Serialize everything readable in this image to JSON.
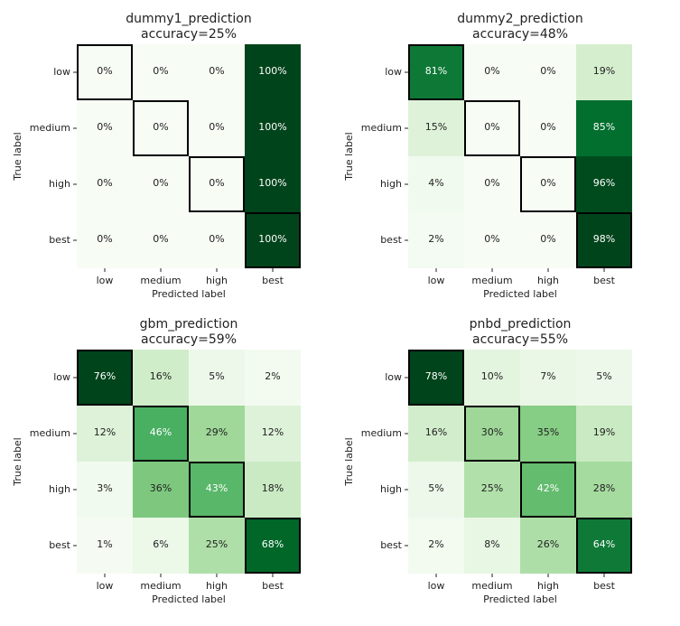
{
  "chart_data": [
    {
      "type": "heatmap",
      "title": "dummy1_prediction",
      "subtitle": "accuracy=25%",
      "xlabel": "Predicted label",
      "ylabel": "True label",
      "x_categories": [
        "low",
        "medium",
        "high",
        "best"
      ],
      "y_categories": [
        "low",
        "medium",
        "high",
        "best"
      ],
      "values": [
        [
          0,
          0,
          0,
          100
        ],
        [
          0,
          0,
          0,
          100
        ],
        [
          0,
          0,
          0,
          100
        ],
        [
          0,
          0,
          0,
          100
        ]
      ],
      "value_suffix": "%",
      "colormap": "greens"
    },
    {
      "type": "heatmap",
      "title": "dummy2_prediction",
      "subtitle": "accuracy=48%",
      "xlabel": "Predicted label",
      "ylabel": "True label",
      "x_categories": [
        "low",
        "medium",
        "high",
        "best"
      ],
      "y_categories": [
        "low",
        "medium",
        "high",
        "best"
      ],
      "values": [
        [
          81,
          0,
          0,
          19
        ],
        [
          15,
          0,
          0,
          85
        ],
        [
          4,
          0,
          0,
          96
        ],
        [
          2,
          0,
          0,
          98
        ]
      ],
      "value_suffix": "%",
      "colormap": "greens"
    },
    {
      "type": "heatmap",
      "title": "gbm_prediction",
      "subtitle": "accuracy=59%",
      "xlabel": "Predicted label",
      "ylabel": "True label",
      "x_categories": [
        "low",
        "medium",
        "high",
        "best"
      ],
      "y_categories": [
        "low",
        "medium",
        "high",
        "best"
      ],
      "values": [
        [
          76,
          16,
          5,
          2
        ],
        [
          12,
          46,
          29,
          12
        ],
        [
          3,
          36,
          43,
          18
        ],
        [
          1,
          6,
          25,
          68
        ]
      ],
      "value_suffix": "%",
      "colormap": "greens"
    },
    {
      "type": "heatmap",
      "title": "pnbd_prediction",
      "subtitle": "accuracy=55%",
      "xlabel": "Predicted label",
      "ylabel": "True label",
      "x_categories": [
        "low",
        "medium",
        "high",
        "best"
      ],
      "y_categories": [
        "low",
        "medium",
        "high",
        "best"
      ],
      "values": [
        [
          78,
          10,
          7,
          5
        ],
        [
          16,
          30,
          35,
          19
        ],
        [
          5,
          25,
          42,
          28
        ],
        [
          2,
          8,
          26,
          64
        ]
      ],
      "value_suffix": "%",
      "colormap": "greens"
    }
  ]
}
